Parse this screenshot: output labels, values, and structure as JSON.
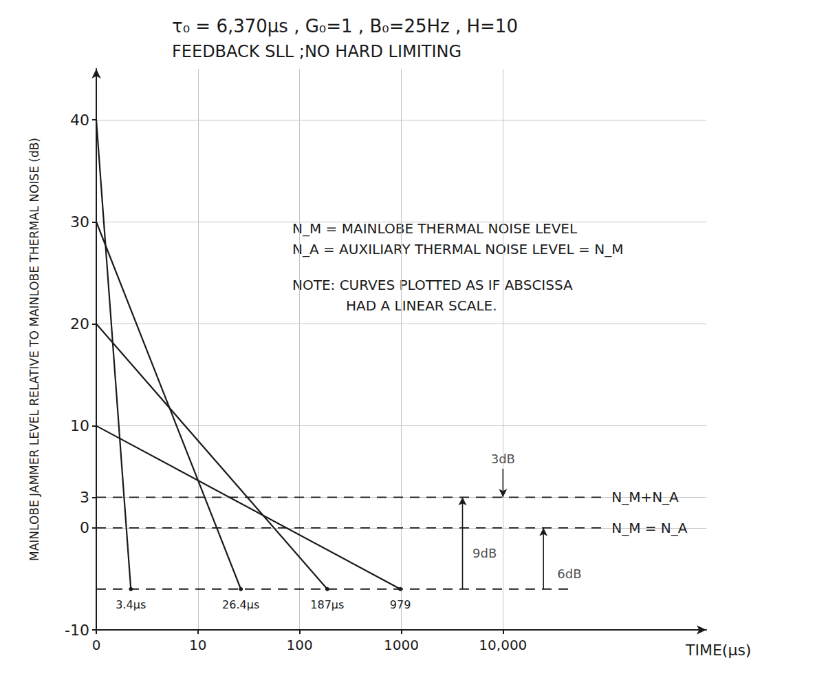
{
  "chart_data": {
    "type": "line",
    "title": "τ₀ = 6,370µs , G₀=1 , B₀=25Hz , H=10",
    "subtitle": "FEEDBACK SLL ;NO HARD LIMITING",
    "xlabel": "TIME(µs)",
    "ylabel": "MAINLOBE JAMMER LEVEL RELATIVE TO MAINLOBE THERMAL NOISE (dB)",
    "notes": [
      "N_M = MAINLOBE THERMAL NOISE LEVEL",
      "N_A = AUXILIARY THERMAL NOISE LEVEL = N_M"
    ],
    "note": [
      "NOTE: CURVES PLOTTED AS IF ABSCISSA",
      "HAD A LINEAR SCALE."
    ],
    "xlim": [
      0,
      1000000
    ],
    "xticks": [
      0,
      10,
      100,
      1000,
      {
        "value": 10000,
        "label": "10,000"
      }
    ],
    "ylim": [
      -10,
      45
    ],
    "yticks": [
      -10,
      0,
      3,
      10,
      20,
      30,
      40
    ],
    "log": "x",
    "grid": true,
    "color": "#1a1a1a",
    "series": [
      {
        "x": [
          0,
          3.4
        ],
        "values": [
          40,
          -6
        ],
        "end_label": "3.4µs"
      },
      {
        "x": [
          0,
          26.4
        ],
        "values": [
          30,
          -6
        ],
        "end_label": "26.4µs"
      },
      {
        "x": [
          0,
          187
        ],
        "values": [
          20,
          -6
        ],
        "end_label": "187µs"
      },
      {
        "x": [
          0,
          979
        ],
        "values": [
          10,
          -6
        ],
        "end_label": "979"
      },
      {
        "name": "N_M+N_A",
        "x": [
          0,
          100000
        ],
        "values": [
          3,
          3
        ],
        "line_style": "dashed"
      },
      {
        "name": "N_M = N_A",
        "x": [
          0,
          100000
        ],
        "values": [
          0,
          0
        ],
        "line_style": "dashed"
      },
      {
        "x": [
          0,
          50000
        ],
        "values": [
          -6,
          -6
        ],
        "line_style": "dashed"
      }
    ],
    "annotations": [
      {
        "text": "3dB",
        "x": 10000,
        "y": 6.8
      },
      {
        "text": "9dB",
        "x": 6600,
        "y": -2.5
      },
      {
        "text": "6dB",
        "x": 45000,
        "y": -4.5
      }
    ],
    "arrows": [
      {
        "x": [
          10000,
          10000
        ],
        "y": [
          5.8,
          3
        ]
      },
      {
        "x": [
          4000,
          4000
        ],
        "y": [
          -6,
          3
        ]
      },
      {
        "x": [
          25000,
          25000
        ],
        "y": [
          -6,
          0
        ]
      }
    ]
  }
}
